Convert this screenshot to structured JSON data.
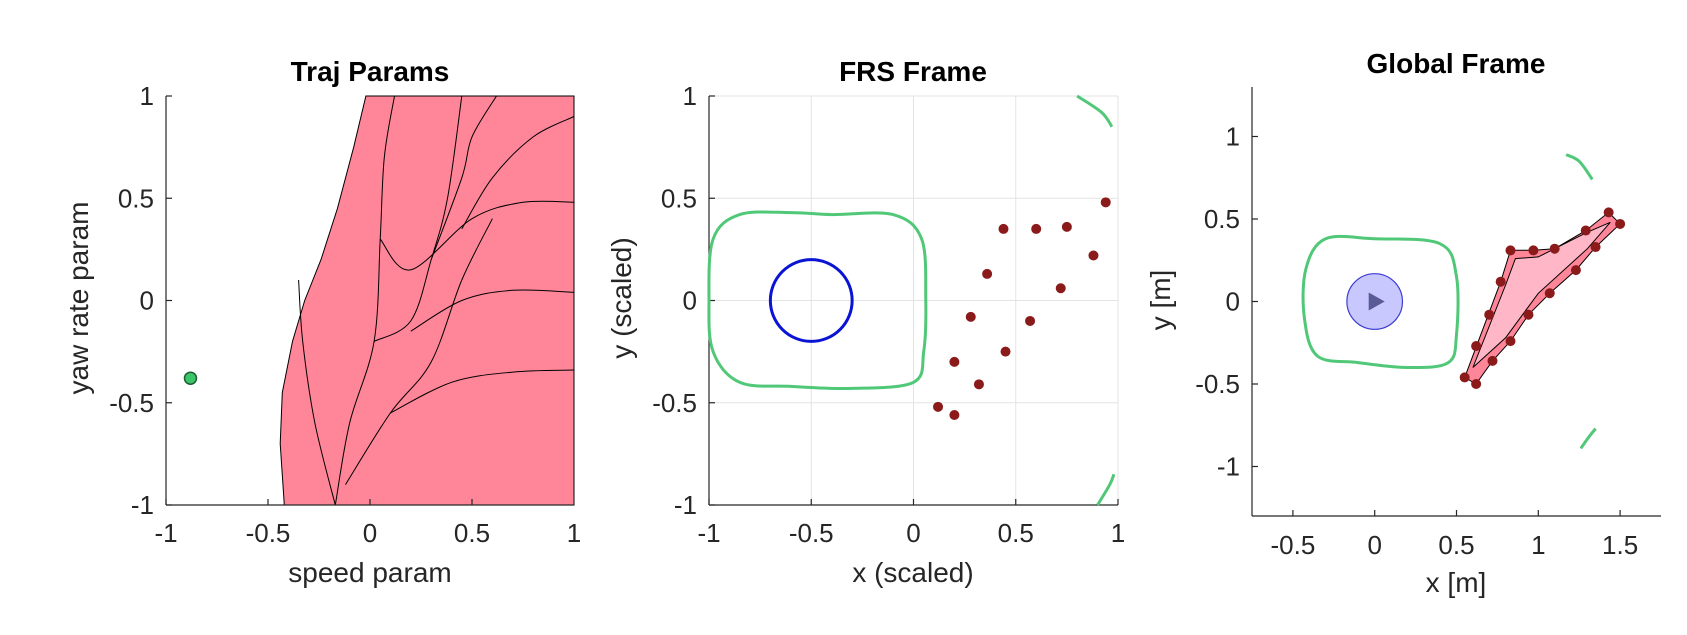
{
  "chart_data": [
    {
      "type": "area",
      "title": "Traj Params",
      "xlabel": "speed param",
      "ylabel": "yaw rate param",
      "xlim": [
        -1,
        1
      ],
      "ylim": [
        -1,
        1
      ],
      "xticks": [
        "-1",
        "-0.5",
        "0",
        "0.5",
        "1"
      ],
      "yticks": [
        "-1",
        "-0.5",
        "0",
        "0.5",
        "1"
      ],
      "grid": false,
      "colors": {
        "region": "#ff8599",
        "edge": "#000000",
        "point": "#3cc46a"
      },
      "current_param": {
        "x": -0.88,
        "y": -0.38
      },
      "region_boundary": [
        [
          -0.42,
          -1
        ],
        [
          -0.44,
          -0.7
        ],
        [
          -0.43,
          -0.45
        ],
        [
          -0.38,
          -0.2
        ],
        [
          -0.32,
          0
        ],
        [
          -0.24,
          0.2
        ],
        [
          -0.16,
          0.45
        ],
        [
          -0.08,
          0.75
        ],
        [
          -0.02,
          1
        ],
        [
          1,
          1
        ],
        [
          1,
          -1
        ]
      ],
      "constraint_curves": [
        [
          [
            -0.17,
            -1
          ],
          [
            -0.27,
            -0.6
          ],
          [
            -0.33,
            -0.2
          ],
          [
            -0.35,
            0.1
          ]
        ],
        [
          [
            -0.17,
            -1
          ],
          [
            -0.1,
            -0.6
          ],
          [
            0.02,
            -0.2
          ],
          [
            0.05,
            0.3
          ],
          [
            0.07,
            0.7
          ],
          [
            0.12,
            1
          ]
        ],
        [
          [
            0.02,
            -0.2
          ],
          [
            0.2,
            -0.1
          ],
          [
            0.3,
            0.2
          ],
          [
            0.38,
            0.5
          ],
          [
            0.45,
            1
          ]
        ],
        [
          [
            0.3,
            0.2
          ],
          [
            0.45,
            0.6
          ],
          [
            0.5,
            0.8
          ],
          [
            0.62,
            1
          ]
        ],
        [
          [
            0.2,
            -0.15
          ],
          [
            0.45,
            0
          ],
          [
            0.7,
            0.05
          ],
          [
            1,
            0.04
          ]
        ],
        [
          [
            0.05,
            0.3
          ],
          [
            0.2,
            0.15
          ],
          [
            0.5,
            0.4
          ],
          [
            0.75,
            0.48
          ],
          [
            1,
            0.48
          ]
        ],
        [
          [
            0.45,
            0.35
          ],
          [
            0.6,
            0.6
          ],
          [
            0.8,
            0.8
          ],
          [
            1,
            0.9
          ]
        ],
        [
          [
            0.1,
            -0.55
          ],
          [
            0.4,
            -0.4
          ],
          [
            0.7,
            -0.35
          ],
          [
            1,
            -0.34
          ]
        ],
        [
          [
            -0.12,
            -0.9
          ],
          [
            0.1,
            -0.55
          ],
          [
            0.3,
            -0.3
          ],
          [
            0.45,
            0.1
          ],
          [
            0.6,
            0.4
          ]
        ]
      ]
    },
    {
      "type": "scatter",
      "title": "FRS Frame",
      "xlabel": "x (scaled)",
      "ylabel": "y (scaled)",
      "xlim": [
        -1,
        1
      ],
      "ylim": [
        -1,
        1
      ],
      "xticks": [
        "-1",
        "-0.5",
        "0",
        "0.5",
        "1"
      ],
      "yticks": [
        "-1",
        "-0.5",
        "0",
        "0.5",
        "1"
      ],
      "grid": true,
      "colors": {
        "points": "#8b1a1a",
        "vehicle": "#0a14d4",
        "reach": "#50c878"
      },
      "obstacle_points": [
        [
          0.12,
          -0.52
        ],
        [
          0.2,
          -0.56
        ],
        [
          0.2,
          -0.3
        ],
        [
          0.28,
          -0.08
        ],
        [
          0.32,
          -0.41
        ],
        [
          0.36,
          0.13
        ],
        [
          0.44,
          0.35
        ],
        [
          0.45,
          -0.25
        ],
        [
          0.57,
          -0.1
        ],
        [
          0.6,
          0.35
        ],
        [
          0.72,
          0.06
        ],
        [
          0.75,
          0.36
        ],
        [
          0.88,
          0.22
        ],
        [
          0.94,
          0.48
        ]
      ],
      "vehicle_circle": {
        "cx": -0.5,
        "cy": 0,
        "r": 0.2
      },
      "reachable_set_contour": [
        [
          -0.6,
          0.43
        ],
        [
          -0.4,
          0.42
        ],
        [
          -0.1,
          0.42
        ],
        [
          0.04,
          0.3
        ],
        [
          0.06,
          0
        ],
        [
          0.05,
          -0.25
        ],
        [
          0,
          -0.4
        ],
        [
          -0.3,
          -0.43
        ],
        [
          -0.6,
          -0.42
        ],
        [
          -0.85,
          -0.4
        ],
        [
          -0.98,
          -0.25
        ],
        [
          -1.0,
          0
        ],
        [
          -0.98,
          0.3
        ],
        [
          -0.85,
          0.42
        ]
      ],
      "arc_top": [
        [
          0.8,
          1
        ],
        [
          0.92,
          0.92
        ],
        [
          0.97,
          0.85
        ]
      ],
      "arc_bottom": [
        [
          0.9,
          -1
        ],
        [
          0.96,
          -0.9
        ],
        [
          0.98,
          -0.85
        ]
      ]
    },
    {
      "type": "scatter",
      "title": "Global Frame",
      "xlabel": "x [m]",
      "ylabel": "y [m]",
      "xlim": [
        -0.75,
        1.75
      ],
      "ylim": [
        -1.3,
        1.3
      ],
      "xticks": [
        "-0.5",
        "0",
        "0.5",
        "1",
        "1.5"
      ],
      "yticks": [
        "-1",
        "-0.5",
        "0",
        "0.5",
        "1"
      ],
      "grid": false,
      "colors": {
        "obstacle": "#ff8599",
        "obstacle_light": "#ffb6c6",
        "points": "#8b1a1a",
        "robot": "#c8c8ff",
        "reach": "#50c878"
      },
      "obstacle_points": [
        [
          0.55,
          -0.46
        ],
        [
          0.62,
          -0.5
        ],
        [
          0.62,
          -0.27
        ],
        [
          0.7,
          -0.08
        ],
        [
          0.72,
          -0.36
        ],
        [
          0.77,
          0.12
        ],
        [
          0.83,
          0.31
        ],
        [
          0.83,
          -0.24
        ],
        [
          0.94,
          -0.08
        ],
        [
          0.97,
          0.31
        ],
        [
          1.07,
          0.05
        ],
        [
          1.1,
          0.32
        ],
        [
          1.23,
          0.19
        ],
        [
          1.29,
          0.43
        ],
        [
          1.35,
          0.33
        ],
        [
          1.43,
          0.54
        ],
        [
          1.5,
          0.47
        ]
      ],
      "robot": {
        "x": 0,
        "y": 0,
        "r": 0.17
      },
      "reachable_set_contour": [
        [
          -0.3,
          0.38
        ],
        [
          0,
          0.38
        ],
        [
          0.4,
          0.35
        ],
        [
          0.5,
          0.15
        ],
        [
          0.5,
          -0.2
        ],
        [
          0.45,
          -0.37
        ],
        [
          0.2,
          -0.4
        ],
        [
          -0.1,
          -0.37
        ],
        [
          -0.35,
          -0.33
        ],
        [
          -0.43,
          -0.1
        ],
        [
          -0.42,
          0.2
        ]
      ],
      "arc_top": [
        [
          1.17,
          0.89
        ],
        [
          1.25,
          0.85
        ],
        [
          1.33,
          0.74
        ]
      ],
      "arc_bottom": [
        [
          1.26,
          -0.89
        ],
        [
          1.31,
          -0.82
        ],
        [
          1.35,
          -0.77
        ]
      ]
    }
  ]
}
